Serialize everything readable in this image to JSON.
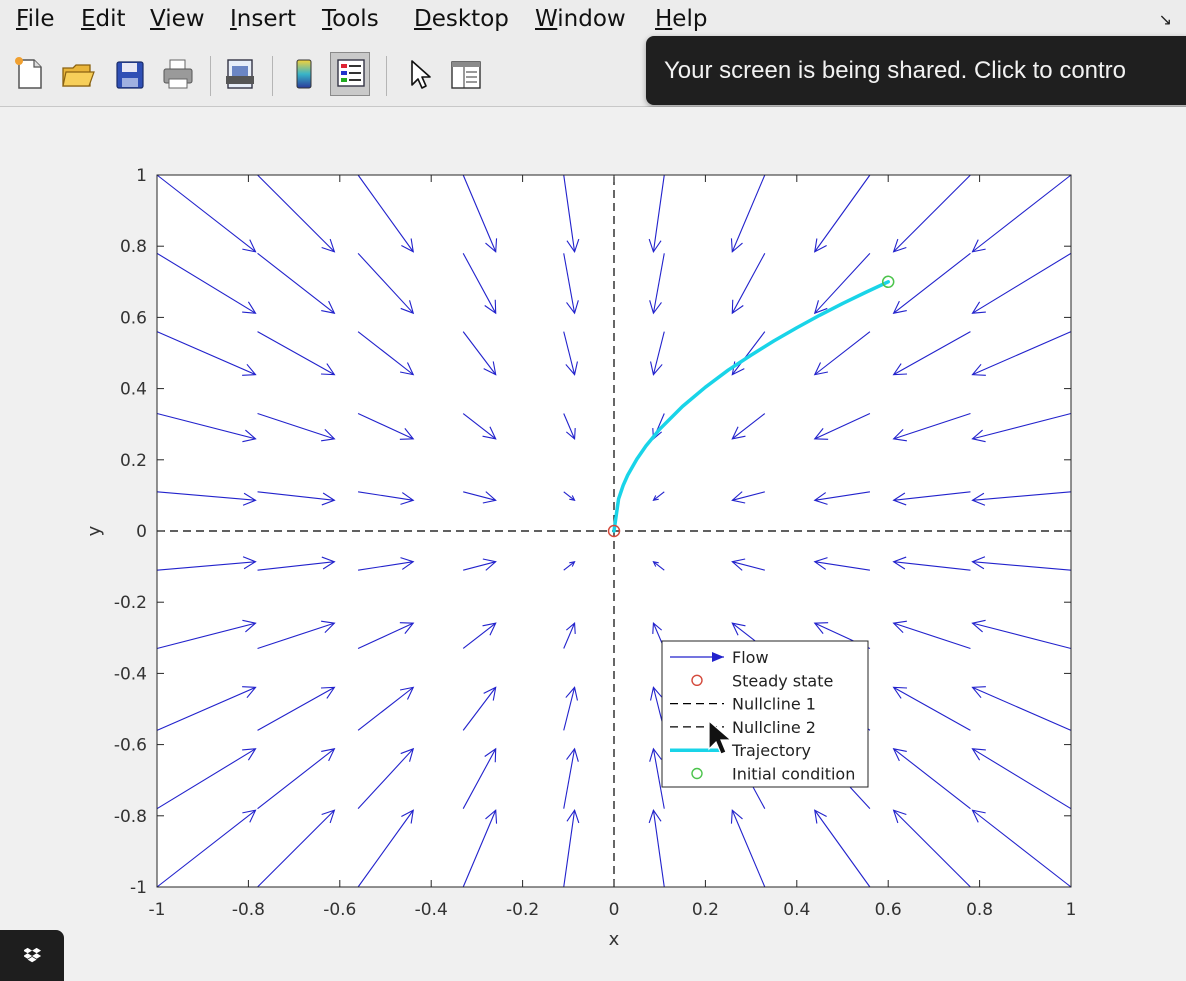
{
  "menu": {
    "items": [
      {
        "mn": "F",
        "rest": "ile"
      },
      {
        "mn": "E",
        "rest": "dit"
      },
      {
        "mn": "V",
        "rest": "iew"
      },
      {
        "mn": "I",
        "rest": "nsert"
      },
      {
        "mn": "T",
        "rest": "ools"
      },
      {
        "mn": "D",
        "rest": "esktop"
      },
      {
        "mn": "W",
        "rest": "indow"
      },
      {
        "mn": "H",
        "rest": "elp"
      }
    ],
    "dock_icon": "undock-arrow-icon"
  },
  "toolbar": {
    "buttons": [
      "new-figure-icon",
      "open-file-icon",
      "save-icon",
      "print-icon",
      "print-preview-icon",
      "colorbar-icon",
      "legend-icon",
      "edit-plot-icon",
      "property-editor-icon"
    ],
    "active": "legend-icon"
  },
  "share_banner": {
    "text": "Your screen is being shared. Click to contro"
  },
  "chart_data": {
    "type": "quiver",
    "title": "",
    "xlabel": "x",
    "ylabel": "y",
    "xlim": [
      -1,
      1
    ],
    "ylim": [
      -1,
      1
    ],
    "xticks": [
      "-1",
      "-0.8",
      "-0.6",
      "-0.4",
      "-0.2",
      "0",
      "0.2",
      "0.4",
      "0.6",
      "0.8",
      "1"
    ],
    "yticks": [
      "-1",
      "-0.8",
      "-0.6",
      "-0.4",
      "-0.2",
      "0",
      "0.2",
      "0.4",
      "0.6",
      "0.8",
      "1"
    ],
    "grid": false,
    "legend_position": "lower-right-inside",
    "flow": {
      "color": "#2222cc",
      "grid_x": [
        -1,
        -0.78,
        -0.56,
        -0.33,
        -0.11,
        0.11,
        0.33,
        0.56,
        0.78,
        1
      ],
      "grid_y": [
        -1,
        -0.78,
        -0.56,
        -0.33,
        -0.11,
        0.11,
        0.33,
        0.56,
        0.78,
        1
      ]
    },
    "nullcline_1": {
      "x": [
        0,
        0
      ],
      "y": [
        -1,
        1
      ],
      "color": "#000000",
      "style": "dashed"
    },
    "nullcline_2": {
      "x": [
        -1,
        1
      ],
      "y": [
        0,
        0
      ],
      "color": "#000000",
      "style": "dashed"
    },
    "steady_state": {
      "x": 0,
      "y": 0,
      "color": "#d44a3c"
    },
    "trajectory": {
      "color": "#19d4e8",
      "x": [
        0.6,
        0.55,
        0.5,
        0.45,
        0.4,
        0.35,
        0.3,
        0.25,
        0.2,
        0.15,
        0.1,
        0.07,
        0.05,
        0.03,
        0.02,
        0.01,
        0
      ],
      "y": [
        0.7,
        0.67,
        0.639,
        0.606,
        0.571,
        0.534,
        0.494,
        0.452,
        0.404,
        0.35,
        0.286,
        0.239,
        0.202,
        0.157,
        0.128,
        0.09,
        0
      ]
    },
    "initial_condition": {
      "x": 0.6,
      "y": 0.7,
      "color": "#4cc44c"
    },
    "legend": [
      "Flow",
      "Steady state",
      "Nullcline 1",
      "Nullcline 2",
      "Trajectory",
      "Initial condition"
    ]
  }
}
